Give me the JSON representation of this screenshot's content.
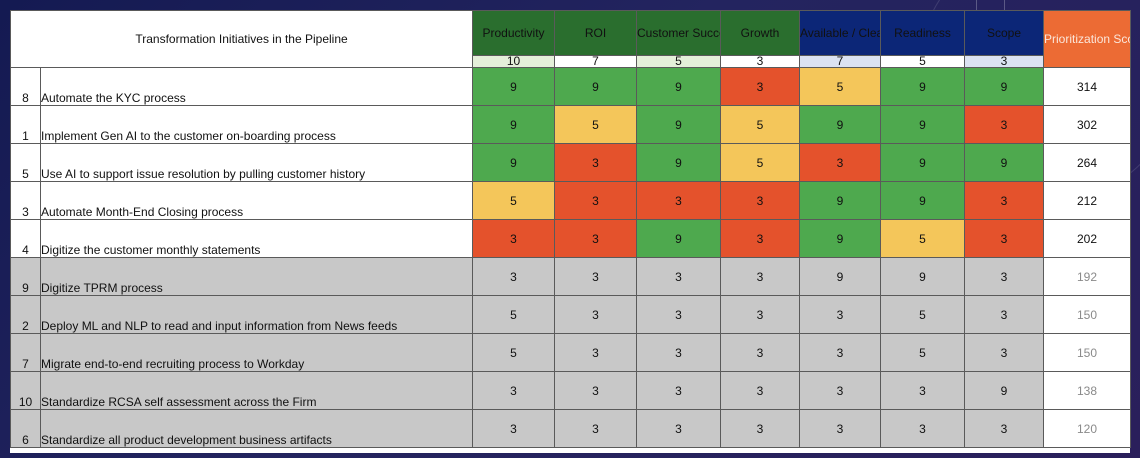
{
  "title": "Transformation Initiatives in the Pipeline",
  "criteria": [
    {
      "label": "Productivity",
      "weight": "10",
      "group": "green"
    },
    {
      "label": "ROI",
      "weight": "7",
      "group": "green"
    },
    {
      "label": "Customer Success",
      "weight": "5",
      "group": "green"
    },
    {
      "label": "Growth",
      "weight": "3",
      "group": "green"
    },
    {
      "label": "Available / Clean Data",
      "weight": "7",
      "group": "navy"
    },
    {
      "label": "Readiness",
      "weight": "5",
      "group": "navy"
    },
    {
      "label": "Scope",
      "weight": "3",
      "group": "navy"
    }
  ],
  "score_header": "Prioritization Score",
  "colors": {
    "green": "#4ea94e",
    "yellow": "#f4c65a",
    "red": "#e4522c",
    "grey": "#c8c8c8",
    "header_green": "#2a6e2e",
    "header_navy": "#0c2677",
    "header_score": "#ec6b34"
  },
  "rows": [
    {
      "id": "8",
      "name": "Automate the KYC process",
      "values": [
        "9",
        "9",
        "9",
        "3",
        "5",
        "9",
        "9"
      ],
      "score": "314",
      "active": true
    },
    {
      "id": "1",
      "name": "Implement Gen AI to the customer on-boarding process",
      "values": [
        "9",
        "5",
        "9",
        "5",
        "9",
        "9",
        "3"
      ],
      "score": "302",
      "active": true
    },
    {
      "id": "5",
      "name": "Use AI to support issue resolution by pulling customer history",
      "values": [
        "9",
        "3",
        "9",
        "5",
        "3",
        "9",
        "9"
      ],
      "score": "264",
      "active": true
    },
    {
      "id": "3",
      "name": "Automate Month-End Closing process",
      "values": [
        "5",
        "3",
        "3",
        "3",
        "9",
        "9",
        "3"
      ],
      "score": "212",
      "active": true
    },
    {
      "id": "4",
      "name": "Digitize the customer monthly statements",
      "values": [
        "3",
        "3",
        "9",
        "3",
        "9",
        "5",
        "3"
      ],
      "score": "202",
      "active": true
    },
    {
      "id": "9",
      "name": "Digitize TPRM process",
      "values": [
        "3",
        "3",
        "3",
        "3",
        "9",
        "9",
        "3"
      ],
      "score": "192",
      "active": false
    },
    {
      "id": "2",
      "name": "Deploy ML and NLP to read and input information from News feeds",
      "values": [
        "5",
        "3",
        "3",
        "3",
        "3",
        "5",
        "3"
      ],
      "score": "150",
      "active": false
    },
    {
      "id": "7",
      "name": "Migrate end-to-end recruiting process to Workday",
      "values": [
        "5",
        "3",
        "3",
        "3",
        "3",
        "5",
        "3"
      ],
      "score": "150",
      "active": false
    },
    {
      "id": "10",
      "name": "Standardize RCSA self assessment across the Firm",
      "values": [
        "3",
        "3",
        "3",
        "3",
        "3",
        "3",
        "9"
      ],
      "score": "138",
      "active": false
    },
    {
      "id": "6",
      "name": "Standardize all product development business artifacts",
      "values": [
        "3",
        "3",
        "3",
        "3",
        "3",
        "3",
        "3"
      ],
      "score": "120",
      "active": false
    }
  ]
}
